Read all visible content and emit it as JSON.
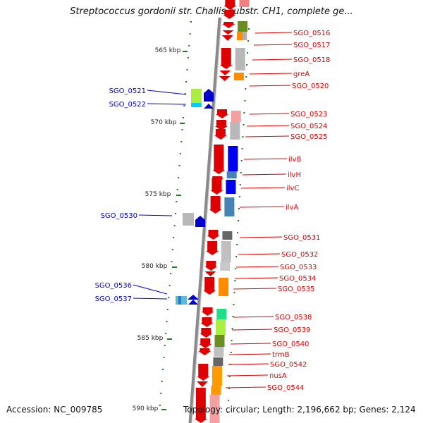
{
  "title": "Streptococcus gordonii str. Challis substr. CH1, complete ge...",
  "footer": {
    "accession": "Accession: NC_009785",
    "topology": "Topology: circular; Length: 2,196,662 bp; Genes: 2,124"
  },
  "colors": {
    "forward": "#dd0000",
    "reverse": "#0000cc",
    "ticks": "#1f7a1f",
    "backbone": "#888888"
  },
  "scale_labels": [
    "565 kbp",
    "570 kbp",
    "575 kbp",
    "580 kbp",
    "585 kbp",
    "590 kbp"
  ],
  "genes_forward": [
    "SGO_0516",
    "SGO_0517",
    "SGO_0518",
    "greA",
    "SGO_0520",
    "SGO_0523",
    "SGO_0524",
    "SGO_0525",
    "ilvB",
    "ilvH",
    "ilvC",
    "ilvA",
    "SGO_0531",
    "SGO_0532",
    "SGO_0533",
    "SGO_0534",
    "SGO_0535",
    "SGO_0538",
    "SGO_0539",
    "SGO_0540",
    "trmB",
    "SGO_0542",
    "nusA",
    "SGO_0544"
  ],
  "genes_reverse": [
    "SGO_0521",
    "SGO_0522",
    "SGO_0530",
    "SGO_0536",
    "SGO_0537"
  ]
}
